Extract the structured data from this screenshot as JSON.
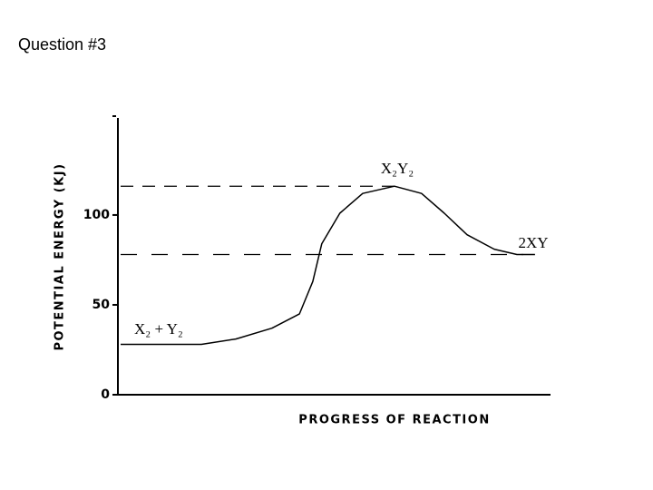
{
  "page_title": "Question #3",
  "chart_data": {
    "type": "line",
    "y_label": "POTENTIAL ENERGY (KJ)",
    "x_label": "PROGRESS OF REACTION",
    "xlim": [
      0,
      100
    ],
    "ylim": [
      0,
      155
    ],
    "yticks": [
      0,
      50,
      100
    ],
    "x": [
      0,
      18.8,
      26.8,
      35.2,
      41.6,
      44.7,
      46.8,
      51,
      56.3,
      63.7,
      70,
      75.3,
      80.6,
      86.9,
      92.2,
      96.4
    ],
    "series": [
      {
        "color": "#000000",
        "values": [
          28,
          28,
          31,
          37,
          45,
          63,
          84,
          101,
          112,
          116,
          112,
          101,
          89,
          81,
          78,
          78
        ]
      }
    ],
    "reference_lines": [
      116,
      78
    ],
    "annotations": [
      "X₂Y₂",
      "2XY",
      "X₂ + Y₂"
    ]
  }
}
